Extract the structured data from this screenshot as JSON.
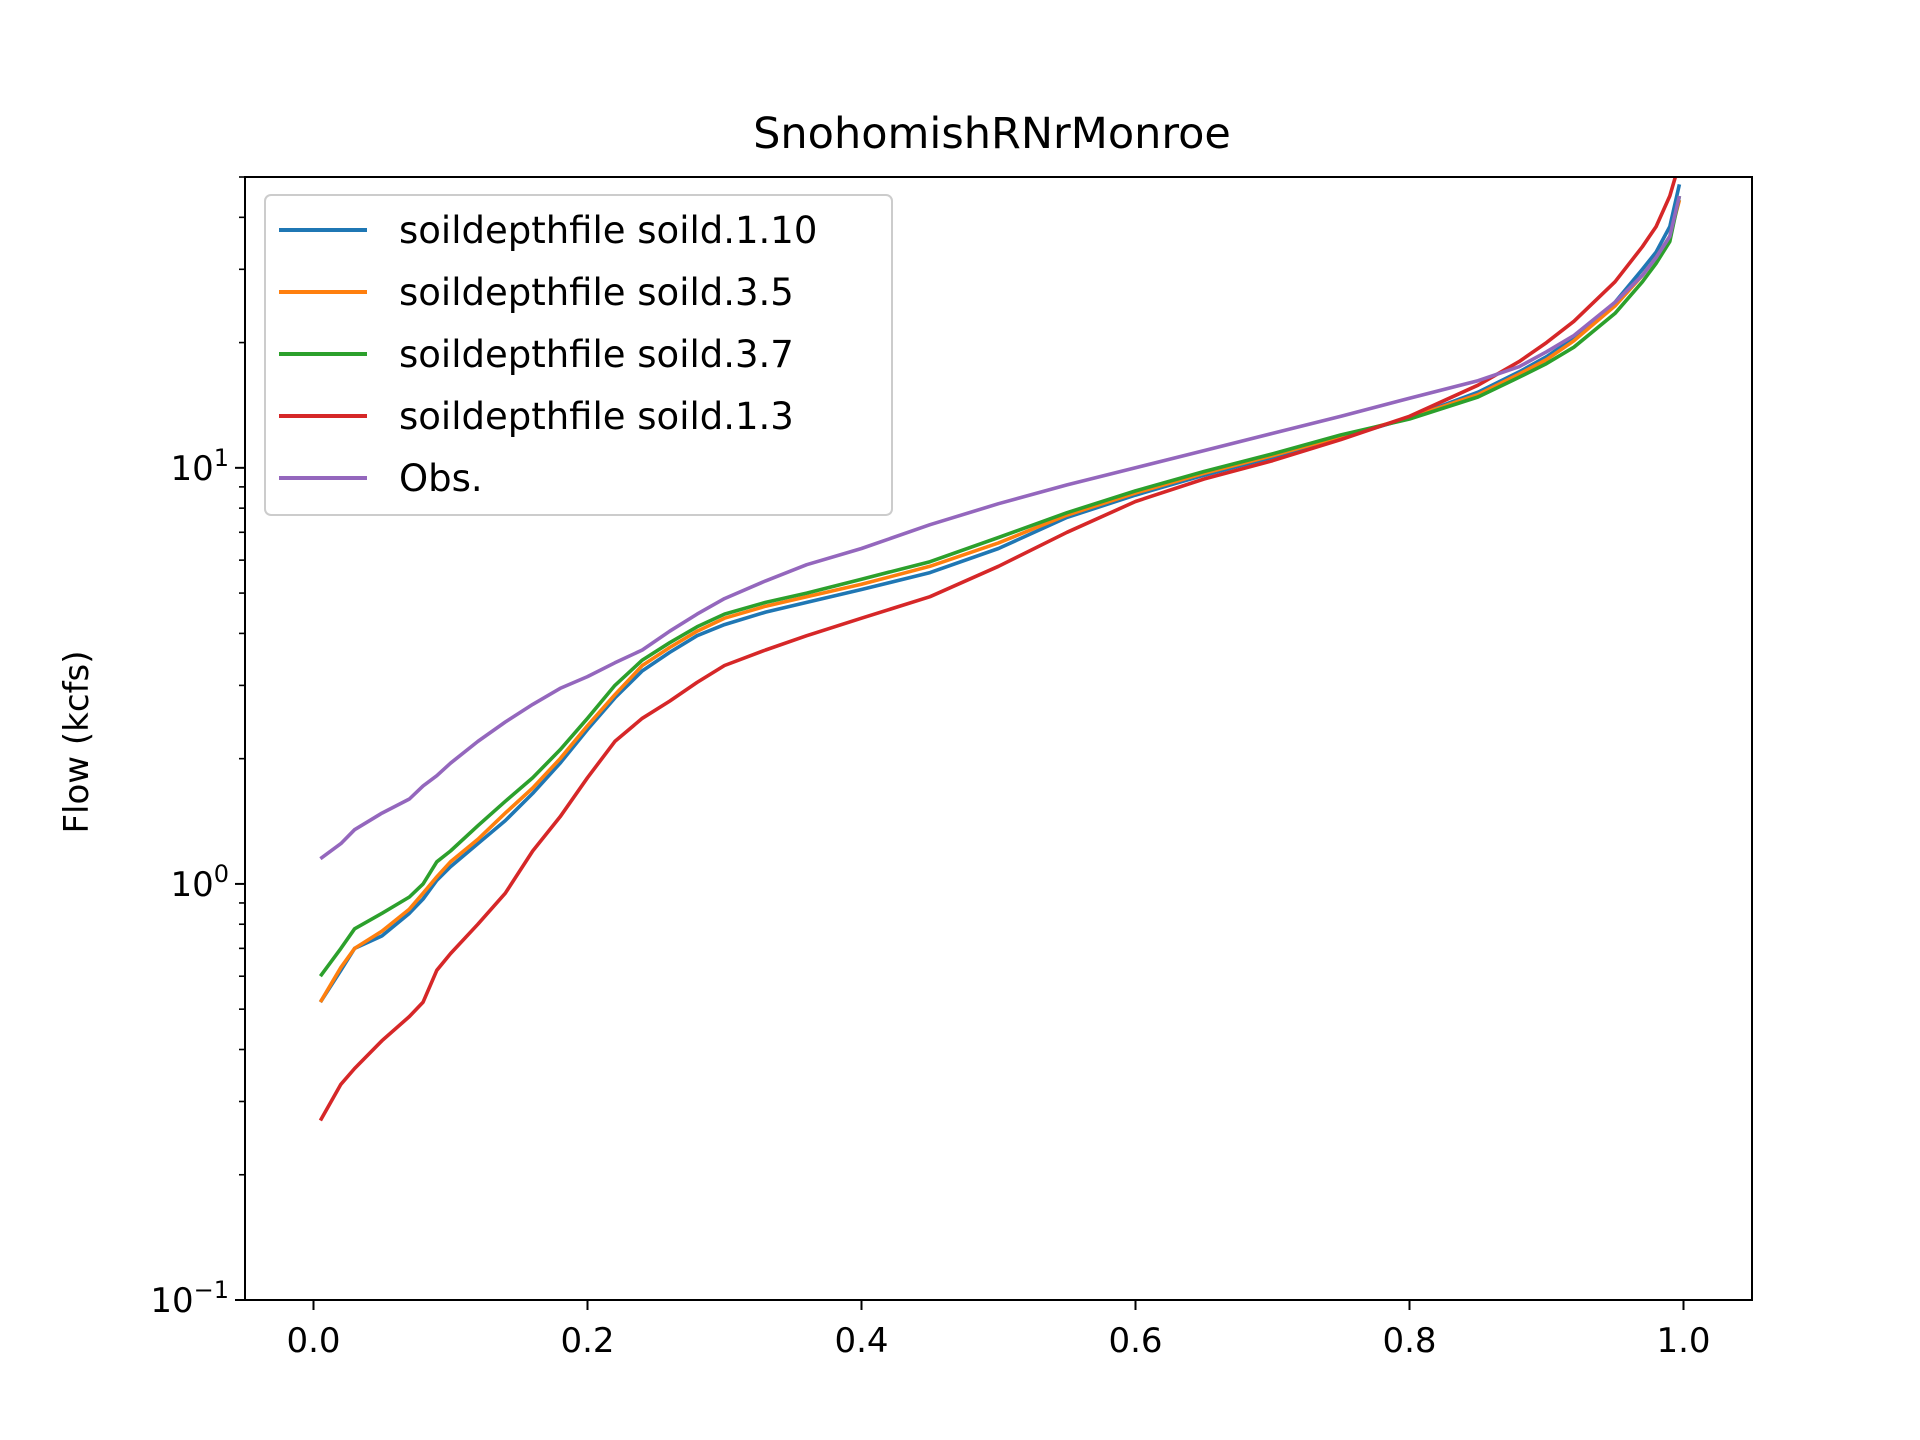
{
  "chart_data": {
    "type": "line",
    "title": "SnohomishRNrMonroe",
    "xlabel": "",
    "ylabel": "Flow (kcfs)",
    "xlim": [
      -0.05,
      1.05
    ],
    "ylim": [
      0.1,
      50
    ],
    "yscale": "log",
    "xticks": [
      "0.0",
      "0.2",
      "0.4",
      "0.6",
      "0.8",
      "1.0"
    ],
    "yticks": [
      {
        "base": "10",
        "exp": "−1"
      },
      {
        "base": "10",
        "exp": "0"
      },
      {
        "base": "10",
        "exp": "1"
      }
    ],
    "legend_position": "upper-left",
    "grid": false,
    "series": [
      {
        "name": "soildepthfile soild.1.10",
        "color": "#1f77b4",
        "x": [
          0.005,
          0.02,
          0.03,
          0.05,
          0.07,
          0.08,
          0.09,
          0.1,
          0.12,
          0.14,
          0.16,
          0.18,
          0.2,
          0.22,
          0.24,
          0.26,
          0.28,
          0.3,
          0.33,
          0.36,
          0.4,
          0.45,
          0.5,
          0.55,
          0.6,
          0.65,
          0.7,
          0.75,
          0.8,
          0.85,
          0.88,
          0.9,
          0.92,
          0.95,
          0.97,
          0.98,
          0.99,
          0.997
        ],
        "y": [
          0.52,
          0.62,
          0.7,
          0.75,
          0.85,
          0.92,
          1.02,
          1.1,
          1.25,
          1.42,
          1.65,
          1.95,
          2.35,
          2.8,
          3.25,
          3.6,
          3.95,
          4.2,
          4.5,
          4.75,
          5.1,
          5.6,
          6.4,
          7.6,
          8.6,
          9.6,
          10.6,
          11.8,
          13.2,
          15.2,
          17.0,
          18.5,
          20.5,
          25.0,
          30.0,
          33.0,
          38.0,
          48.0
        ]
      },
      {
        "name": "soildepthfile soild.3.5",
        "color": "#ff7f0e",
        "x": [
          0.005,
          0.02,
          0.03,
          0.05,
          0.07,
          0.08,
          0.09,
          0.1,
          0.12,
          0.14,
          0.16,
          0.18,
          0.2,
          0.22,
          0.24,
          0.26,
          0.28,
          0.3,
          0.33,
          0.36,
          0.4,
          0.45,
          0.5,
          0.55,
          0.6,
          0.65,
          0.7,
          0.75,
          0.8,
          0.85,
          0.88,
          0.9,
          0.92,
          0.95,
          0.97,
          0.98,
          0.99,
          0.997
        ],
        "y": [
          0.52,
          0.63,
          0.7,
          0.77,
          0.87,
          0.95,
          1.04,
          1.13,
          1.28,
          1.48,
          1.7,
          2.0,
          2.4,
          2.85,
          3.35,
          3.7,
          4.05,
          4.35,
          4.65,
          4.9,
          5.25,
          5.8,
          6.6,
          7.7,
          8.7,
          9.7,
          10.7,
          11.9,
          13.2,
          15.0,
          16.8,
          18.2,
          20.2,
          24.5,
          29.0,
          32.0,
          36.0,
          44.0
        ]
      },
      {
        "name": "soildepthfile soild.3.7",
        "color": "#2ca02c",
        "x": [
          0.005,
          0.02,
          0.03,
          0.05,
          0.07,
          0.08,
          0.09,
          0.1,
          0.12,
          0.14,
          0.16,
          0.18,
          0.2,
          0.22,
          0.24,
          0.26,
          0.28,
          0.3,
          0.33,
          0.36,
          0.4,
          0.45,
          0.5,
          0.55,
          0.6,
          0.65,
          0.7,
          0.75,
          0.8,
          0.85,
          0.88,
          0.9,
          0.92,
          0.95,
          0.97,
          0.98,
          0.99,
          0.997
        ],
        "y": [
          0.6,
          0.7,
          0.78,
          0.85,
          0.93,
          1.0,
          1.13,
          1.2,
          1.38,
          1.58,
          1.8,
          2.1,
          2.5,
          3.0,
          3.45,
          3.8,
          4.15,
          4.45,
          4.75,
          5.0,
          5.4,
          5.95,
          6.8,
          7.8,
          8.8,
          9.8,
          10.8,
          12.0,
          13.1,
          14.8,
          16.5,
          17.8,
          19.5,
          23.5,
          28.0,
          31.0,
          35.0,
          45.0
        ]
      },
      {
        "name": "soildepthfile soild.1.3",
        "color": "#d62728",
        "x": [
          0.005,
          0.02,
          0.03,
          0.05,
          0.07,
          0.08,
          0.09,
          0.1,
          0.12,
          0.14,
          0.16,
          0.18,
          0.2,
          0.22,
          0.24,
          0.26,
          0.28,
          0.3,
          0.33,
          0.36,
          0.4,
          0.45,
          0.5,
          0.55,
          0.6,
          0.65,
          0.7,
          0.75,
          0.8,
          0.85,
          0.88,
          0.9,
          0.92,
          0.95,
          0.97,
          0.98,
          0.99,
          0.997
        ],
        "y": [
          0.27,
          0.33,
          0.36,
          0.42,
          0.48,
          0.52,
          0.62,
          0.68,
          0.8,
          0.95,
          1.2,
          1.45,
          1.8,
          2.2,
          2.5,
          2.75,
          3.05,
          3.35,
          3.65,
          3.95,
          4.35,
          4.9,
          5.8,
          7.0,
          8.3,
          9.4,
          10.4,
          11.7,
          13.3,
          15.8,
          18.0,
          20.0,
          22.5,
          28.0,
          34.0,
          38.0,
          45.0,
          54.0
        ]
      },
      {
        "name": "Obs.",
        "color": "#9467bd",
        "x": [
          0.005,
          0.02,
          0.03,
          0.05,
          0.07,
          0.08,
          0.09,
          0.1,
          0.12,
          0.14,
          0.16,
          0.18,
          0.2,
          0.22,
          0.24,
          0.26,
          0.28,
          0.3,
          0.33,
          0.36,
          0.4,
          0.45,
          0.5,
          0.55,
          0.6,
          0.65,
          0.7,
          0.75,
          0.8,
          0.85,
          0.88,
          0.9,
          0.92,
          0.95,
          0.97,
          0.98,
          0.99,
          0.997
        ],
        "y": [
          1.15,
          1.25,
          1.35,
          1.48,
          1.6,
          1.72,
          1.82,
          1.95,
          2.2,
          2.45,
          2.7,
          2.95,
          3.15,
          3.4,
          3.65,
          4.05,
          4.45,
          4.85,
          5.35,
          5.85,
          6.4,
          7.3,
          8.2,
          9.1,
          10.0,
          11.0,
          12.1,
          13.3,
          14.7,
          16.2,
          17.5,
          19.0,
          20.8,
          25.0,
          29.0,
          32.0,
          36.0,
          45.0
        ]
      }
    ]
  }
}
